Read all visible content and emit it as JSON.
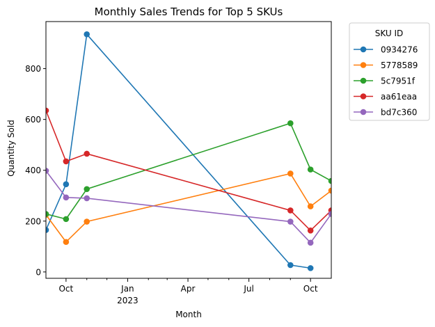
{
  "chart_data": {
    "type": "line",
    "title": "Monthly Sales Trends for Top 5 SKUs",
    "xlabel": "Month",
    "ylabel": "Quantity Sold",
    "legend": {
      "title": "SKU ID",
      "placement": "outside-top-right"
    },
    "x_axis": {
      "type": "date",
      "range": [
        "2022-09-01",
        "2023-11-01"
      ],
      "major_ticks": [
        {
          "date": "2022-10-01",
          "label": "Oct",
          "sublabel": ""
        },
        {
          "date": "2023-01-01",
          "label": "Jan",
          "sublabel": "2023"
        },
        {
          "date": "2023-04-01",
          "label": "Apr",
          "sublabel": ""
        },
        {
          "date": "2023-07-01",
          "label": "Jul",
          "sublabel": ""
        },
        {
          "date": "2023-10-01",
          "label": "Oct",
          "sublabel": ""
        }
      ],
      "minor_ticks": [
        "2022-11-01",
        "2022-12-01",
        "2023-02-01",
        "2023-03-01",
        "2023-05-01",
        "2023-06-01",
        "2023-08-01",
        "2023-09-01"
      ]
    },
    "y_axis": {
      "range": [
        -25,
        985
      ],
      "ticks": [
        0,
        200,
        400,
        600,
        800
      ]
    },
    "grid": false,
    "series": [
      {
        "name": "0934276",
        "color": "#1f77b4",
        "points": [
          {
            "x": "2022-09-01",
            "y": 165
          },
          {
            "x": "2022-10-01",
            "y": 345
          },
          {
            "x": "2022-11-01",
            "y": 935
          },
          {
            "x": "2023-09-01",
            "y": 27
          },
          {
            "x": "2023-10-01",
            "y": 15
          }
        ]
      },
      {
        "name": "5778589",
        "color": "#ff7f0e",
        "points": [
          {
            "x": "2022-09-01",
            "y": 225
          },
          {
            "x": "2022-10-01",
            "y": 118
          },
          {
            "x": "2022-11-01",
            "y": 198
          },
          {
            "x": "2023-09-01",
            "y": 387
          },
          {
            "x": "2023-10-01",
            "y": 258
          },
          {
            "x": "2023-11-01",
            "y": 320
          }
        ]
      },
      {
        "name": "5c7951f",
        "color": "#2ca02c",
        "points": [
          {
            "x": "2022-09-01",
            "y": 228
          },
          {
            "x": "2022-10-01",
            "y": 208
          },
          {
            "x": "2022-11-01",
            "y": 326
          },
          {
            "x": "2023-09-01",
            "y": 585
          },
          {
            "x": "2023-10-01",
            "y": 403
          },
          {
            "x": "2023-11-01",
            "y": 358
          }
        ]
      },
      {
        "name": "aa61eaa",
        "color": "#d62728",
        "points": [
          {
            "x": "2022-09-01",
            "y": 635
          },
          {
            "x": "2022-10-01",
            "y": 435
          },
          {
            "x": "2022-11-01",
            "y": 465
          },
          {
            "x": "2023-09-01",
            "y": 242
          },
          {
            "x": "2023-10-01",
            "y": 163
          },
          {
            "x": "2023-11-01",
            "y": 242
          }
        ]
      },
      {
        "name": "bd7c360",
        "color": "#9467bd",
        "points": [
          {
            "x": "2022-09-01",
            "y": 398
          },
          {
            "x": "2022-10-01",
            "y": 293
          },
          {
            "x": "2022-11-01",
            "y": 290
          },
          {
            "x": "2023-09-01",
            "y": 198
          },
          {
            "x": "2023-10-01",
            "y": 115
          },
          {
            "x": "2023-11-01",
            "y": 228
          }
        ]
      }
    ]
  }
}
